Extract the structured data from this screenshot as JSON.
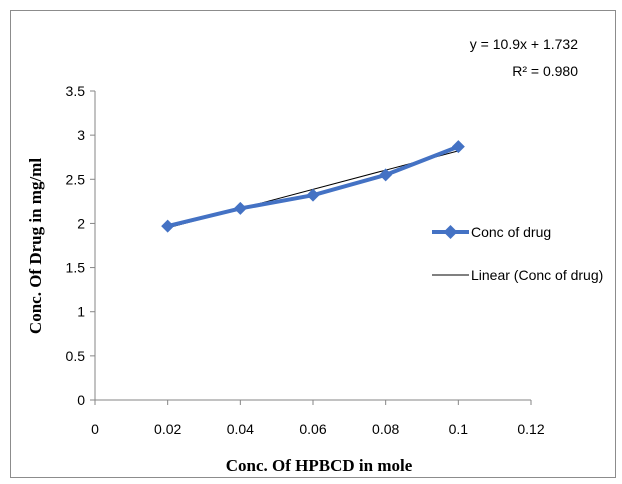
{
  "chart_data": {
    "type": "line",
    "title": "",
    "xlabel": "Conc. Of HPBCD in mole",
    "ylabel": "Conc. Of Drug in mg/ml",
    "xlim": [
      0,
      0.12
    ],
    "ylim": [
      0,
      3.5
    ],
    "x_ticks": [
      "0",
      "0.02",
      "0.04",
      "0.06",
      "0.08",
      "0.1",
      "0.12"
    ],
    "y_ticks": [
      "0",
      "0.5",
      "1",
      "1.5",
      "2",
      "2.5",
      "3",
      "3.5"
    ],
    "x_tick_values": [
      0,
      0.02,
      0.04,
      0.06,
      0.08,
      0.1,
      0.12
    ],
    "y_tick_values": [
      0,
      0.5,
      1,
      1.5,
      2,
      2.5,
      3,
      3.5
    ],
    "grid": false,
    "legend_position": "right",
    "series": [
      {
        "name": "Conc of drug",
        "color": "#4472c4",
        "marker": "diamond",
        "x": [
          0.02,
          0.04,
          0.06,
          0.08,
          0.1
        ],
        "y": [
          1.97,
          2.17,
          2.32,
          2.55,
          2.87
        ]
      }
    ],
    "trendline": {
      "name": "Linear (Conc of drug)",
      "color": "#000000",
      "slope": 10.9,
      "intercept": 1.732,
      "x": [
        0.02,
        0.1
      ]
    },
    "equation": "y = 10.9x + 1.732",
    "r_squared": "R² = 0.980"
  }
}
